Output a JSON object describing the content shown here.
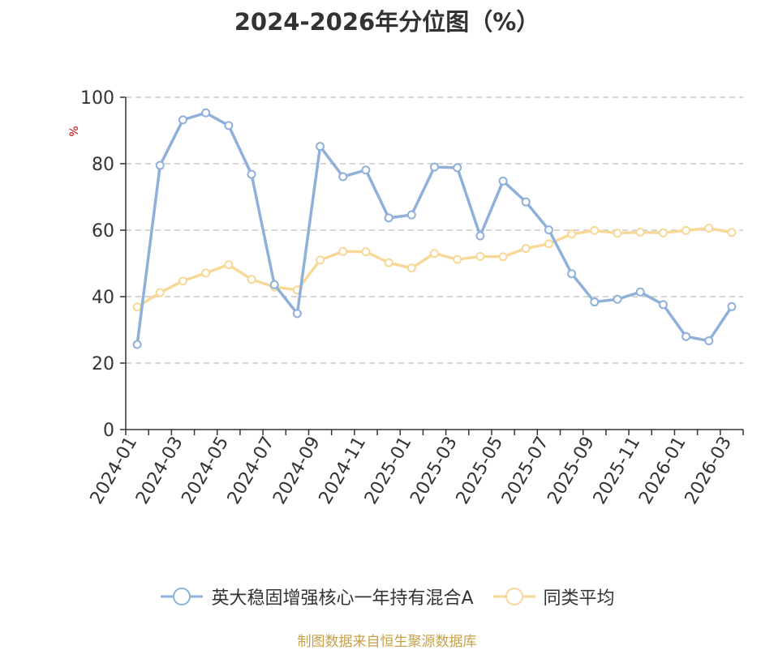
{
  "chart_data": {
    "type": "line",
    "title": "2024-2026年分位图（%）",
    "ylabel": "%",
    "ylim": [
      0,
      100
    ],
    "yticks": [
      0,
      20,
      40,
      60,
      80,
      100
    ],
    "x": [
      "2024-01-31",
      "2024-02-29",
      "2024-03-31",
      "2024-04-30",
      "2024-05-31",
      "2024-06-30",
      "2024-07-31",
      "2024-08-31",
      "2024-09-30",
      "2024-10-31",
      "2024-11-30",
      "2024-12-31",
      "2025-01-31",
      "2025-02-28",
      "2025-03-31",
      "2025-04-30",
      "2025-05-31",
      "2025-06-30",
      "2025-07-31",
      "2025-08-31",
      "2025-09-30",
      "2025-10-31",
      "2025-11-30",
      "2025-12-31",
      "2026-01-31",
      "2026-02-28",
      "2026-03-31"
    ],
    "xtick_labels": [
      "2024-01",
      "2024-03",
      "2024-05",
      "2024-07",
      "2024-09",
      "2024-11",
      "2025-01",
      "2025-03",
      "2025-05",
      "2025-07",
      "2025-09",
      "2025-11",
      "2026-01",
      "2026-03"
    ],
    "series": [
      {
        "name": "英大稳固增强核心一年持有混合A",
        "color": "#8eb0d9",
        "values": [
          25.6,
          79.5,
          93.2,
          95.3,
          91.5,
          76.8,
          43.6,
          34.9,
          85.2,
          76.1,
          78.1,
          63.7,
          64.6,
          79.0,
          78.8,
          58.3,
          74.8,
          68.5,
          60.1,
          46.9,
          38.4,
          39.2,
          41.4,
          37.6,
          28.0,
          26.7,
          37.0
        ]
      },
      {
        "name": "同类平均",
        "color": "#f8d898",
        "values": [
          36.9,
          41.2,
          44.7,
          47.1,
          49.6,
          45.2,
          42.9,
          42.0,
          51.0,
          53.6,
          53.5,
          50.2,
          48.6,
          53.0,
          51.2,
          52.1,
          52.0,
          54.5,
          55.9,
          58.8,
          59.9,
          59.1,
          59.4,
          59.2,
          59.9,
          60.6,
          59.3
        ]
      }
    ],
    "grid": true,
    "legend_position": "bottom-center"
  },
  "source_text": "制图数据来自恒生聚源数据库"
}
